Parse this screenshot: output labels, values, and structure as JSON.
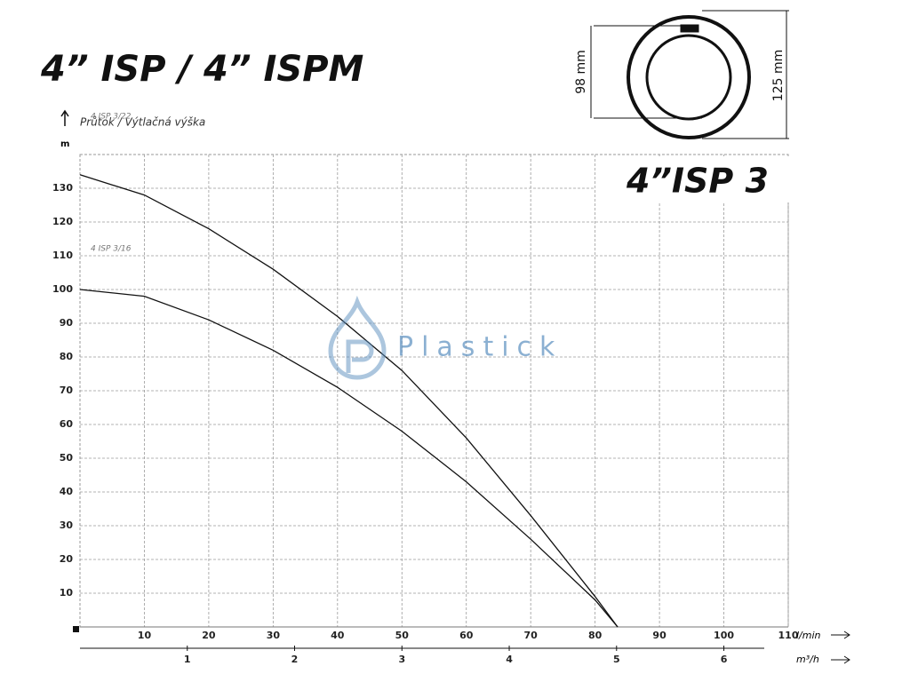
{
  "chart_data": {
    "type": "line",
    "title": "4” ISP / 4” ISPM",
    "subtitle": "4”ISP 3",
    "y_label": "Průtok / Výtlačná výška",
    "y_unit": "m",
    "x_unit": "l/min",
    "x2_unit": "m³/h",
    "watermark": "Plastick",
    "dimensions": [
      "98 mm",
      "125 mm"
    ],
    "x": [
      0,
      10,
      20,
      30,
      40,
      50,
      60,
      70,
      80,
      83.5
    ],
    "series": [
      {
        "name": "4 ISP 3/22",
        "color": "#111111",
        "values": [
          134,
          128,
          118,
          106,
          92,
          76,
          56,
          33,
          9,
          0
        ]
      },
      {
        "name": "4 ISP 3/16",
        "color": "#111111",
        "values": [
          100,
          98,
          91,
          82,
          71,
          58,
          43,
          26,
          8,
          0
        ]
      }
    ],
    "xlim": [
      0,
      110
    ],
    "xticks": [
      10,
      20,
      30,
      40,
      50,
      60,
      70,
      80,
      90,
      100,
      110
    ],
    "x2lim": [
      0,
      6.6
    ],
    "x2ticks": [
      1,
      2,
      3,
      4,
      5,
      6
    ],
    "ylim": [
      0,
      140
    ],
    "yticks": [
      10,
      20,
      30,
      40,
      50,
      60,
      70,
      80,
      90,
      100,
      110,
      120,
      130
    ],
    "grid": true
  }
}
